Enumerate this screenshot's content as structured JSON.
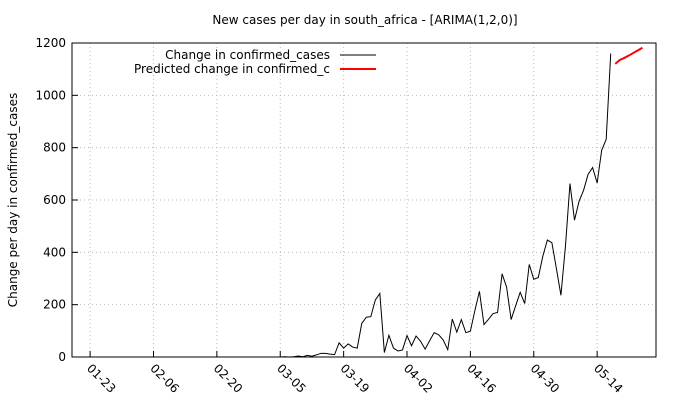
{
  "chart_data": {
    "type": "line",
    "title": "New cases per day in south_africa -  [ARIMA(1,2,0)]",
    "y_label": "Change per day in confirmed_cases",
    "xlim": [
      "01-19",
      "05-27"
    ],
    "xticks": [
      "01-23",
      "02-06",
      "02-20",
      "03-05",
      "03-19",
      "04-02",
      "04-16",
      "04-30",
      "05-14"
    ],
    "ylim": [
      0,
      1200
    ],
    "yticks": [
      0,
      200,
      400,
      600,
      800,
      1000,
      1200
    ],
    "grid": true,
    "legend": "top",
    "series": [
      {
        "name": "Change in confirmed_cases",
        "color": "#000000",
        "x": [
          "03-05",
          "03-06",
          "03-07",
          "03-08",
          "03-09",
          "03-10",
          "03-11",
          "03-12",
          "03-13",
          "03-14",
          "03-15",
          "03-16",
          "03-17",
          "03-18",
          "03-19",
          "03-20",
          "03-21",
          "03-22",
          "03-23",
          "03-24",
          "03-25",
          "03-26",
          "03-27",
          "03-28",
          "03-29",
          "03-30",
          "03-31",
          "04-01",
          "04-02",
          "04-03",
          "04-04",
          "04-05",
          "04-06",
          "04-07",
          "04-08",
          "04-09",
          "04-10",
          "04-11",
          "04-12",
          "04-13",
          "04-14",
          "04-15",
          "04-16",
          "04-17",
          "04-18",
          "04-19",
          "04-20",
          "04-21",
          "04-22",
          "04-23",
          "04-24",
          "04-25",
          "04-26",
          "04-27",
          "04-28",
          "04-29",
          "04-30",
          "05-01",
          "05-02",
          "05-03",
          "05-04",
          "05-05",
          "05-06",
          "05-07",
          "05-08",
          "05-09",
          "05-10",
          "05-11",
          "05-12",
          "05-13",
          "05-14",
          "05-15",
          "05-16",
          "05-17"
        ],
        "values": [
          0,
          1,
          0,
          1,
          4,
          1,
          6,
          3,
          8,
          14,
          14,
          11,
          9,
          54,
          34,
          50,
          38,
          34,
          128,
          152,
          154,
          218,
          243,
          17,
          83,
          34,
          23,
          27,
          82,
          43,
          80,
          60,
          30,
          62,
          93,
          85,
          65,
          28,
          145,
          95,
          143,
          93,
          99,
          178,
          251,
          124,
          144,
          166,
          170,
          318,
          267,
          143,
          196,
          247,
          204,
          354,
          297,
          304,
          385,
          447,
          437,
          338,
          236,
          424,
          663,
          523,
          595,
          637,
          698,
          724,
          665,
          790,
          832,
          1160
        ]
      },
      {
        "name": "Predicted change in confirmed_c",
        "color": "#ff0000",
        "x": [
          "05-18",
          "05-19",
          "05-20",
          "05-21",
          "05-22",
          "05-23",
          "05-24"
        ],
        "values": [
          1120,
          1135,
          1143,
          1152,
          1162,
          1172,
          1182
        ]
      }
    ]
  }
}
